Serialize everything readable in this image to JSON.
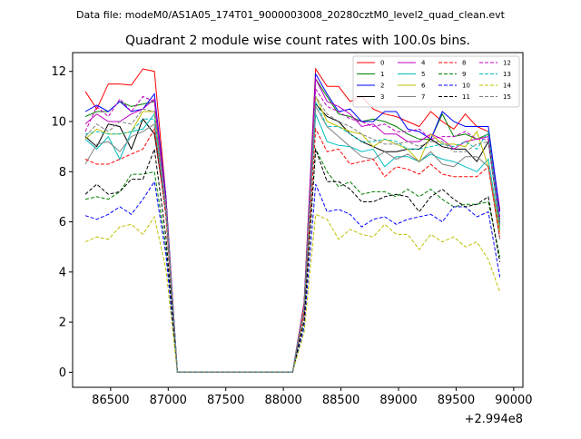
{
  "figure": {
    "suptitle": "Data file: modeM0/AS1A05_174T01_9000003008_20280cztM0_level2_quad_clean.evt"
  },
  "chart_data": {
    "type": "line",
    "title": "Quadrant 2 module wise count rates with 100.0s bins.",
    "xlabel": "",
    "ylabel": "",
    "offset_text": "+2.994e8",
    "x_offset": 299400000,
    "xlim": [
      86170,
      90080
    ],
    "ylim": [
      -0.6,
      12.75
    ],
    "xticks": [
      86500,
      87000,
      87500,
      88000,
      88500,
      89000,
      89500,
      90000
    ],
    "yticks": [
      0,
      2,
      4,
      6,
      8,
      10,
      12
    ],
    "grid": false,
    "legend": {
      "placement": "upper-right",
      "columns": 4
    },
    "x": [
      86280,
      86380,
      86480,
      86580,
      86680,
      86780,
      86880,
      86980,
      87080,
      87180,
      87280,
      87380,
      87480,
      87580,
      87680,
      87780,
      87880,
      87980,
      88080,
      88180,
      88280,
      88380,
      88480,
      88580,
      88680,
      88780,
      88880,
      88980,
      89080,
      89180,
      89280,
      89380,
      89480,
      89580,
      89680,
      89780,
      89880
    ],
    "series": [
      {
        "name": "0",
        "color": "#ff0000",
        "dash": "solid",
        "values": [
          11.2,
          10.5,
          11.5,
          11.5,
          11.45,
          12.1,
          12.0,
          7.0,
          0,
          0,
          0,
          0,
          0,
          0,
          0,
          0,
          0,
          0,
          0,
          2.8,
          12.1,
          11.4,
          11.4,
          10.8,
          11.0,
          10.5,
          10.3,
          10.2,
          10.0,
          9.8,
          10.4,
          10.0,
          9.7,
          10.3,
          9.8,
          9.6,
          6.5
        ]
      },
      {
        "name": "1",
        "color": "#008000",
        "dash": "solid",
        "values": [
          10.2,
          10.4,
          10.4,
          10.8,
          10.6,
          10.7,
          10.8,
          6.8,
          0,
          0,
          0,
          0,
          0,
          0,
          0,
          0,
          0,
          0,
          0,
          2.7,
          11.7,
          11.0,
          10.3,
          10.2,
          10.0,
          10.1,
          10.0,
          9.8,
          9.5,
          9.3,
          9.3,
          10.3,
          9.4,
          9.5,
          9.3,
          9.5,
          6.1
        ]
      },
      {
        "name": "2",
        "color": "#0000ff",
        "dash": "solid",
        "values": [
          10.4,
          10.65,
          10.4,
          10.8,
          10.4,
          10.5,
          11.1,
          7.0,
          0,
          0,
          0,
          0,
          0,
          0,
          0,
          0,
          0,
          0,
          0,
          2.7,
          11.9,
          11.1,
          10.4,
          10.5,
          10.0,
          10.0,
          10.4,
          10.4,
          9.7,
          9.6,
          9.3,
          10.4,
          10.0,
          9.8,
          9.8,
          9.8,
          6.4
        ]
      },
      {
        "name": "3",
        "color": "#000000",
        "dash": "solid",
        "values": [
          9.4,
          9.0,
          9.9,
          9.8,
          8.9,
          10.1,
          9.5,
          6.4,
          0,
          0,
          0,
          0,
          0,
          0,
          0,
          0,
          0,
          0,
          0,
          2.5,
          10.7,
          10.2,
          10.0,
          9.5,
          9.2,
          9.0,
          8.8,
          8.8,
          8.9,
          8.9,
          9.3,
          9.0,
          8.9,
          8.9,
          8.4,
          9.2,
          5.9
        ]
      },
      {
        "name": "4",
        "color": "#bf00bf",
        "dash": "solid",
        "values": [
          9.9,
          10.3,
          10.0,
          10.0,
          10.3,
          10.5,
          10.9,
          6.8,
          0,
          0,
          0,
          0,
          0,
          0,
          0,
          0,
          0,
          0,
          0,
          2.7,
          11.7,
          10.8,
          10.6,
          10.3,
          9.8,
          9.9,
          9.5,
          9.5,
          9.2,
          9.2,
          9.5,
          9.3,
          8.9,
          9.2,
          9.3,
          9.4,
          6.0
        ]
      },
      {
        "name": "5",
        "color": "#00bfbf",
        "dash": "solid",
        "values": [
          9.3,
          8.9,
          9.4,
          8.5,
          9.6,
          9.7,
          10.3,
          6.4,
          0,
          0,
          0,
          0,
          0,
          0,
          0,
          0,
          0,
          0,
          0,
          2.5,
          10.3,
          9.2,
          9.05,
          9.0,
          8.8,
          8.9,
          8.2,
          8.6,
          8.6,
          8.4,
          8.7,
          8.5,
          8.4,
          8.2,
          8.0,
          8.5,
          5.7
        ]
      },
      {
        "name": "6",
        "color": "#bfbf00",
        "dash": "solid",
        "values": [
          9.3,
          9.7,
          9.5,
          9.5,
          9.6,
          10.4,
          10.4,
          6.7,
          0,
          0,
          0,
          0,
          0,
          0,
          0,
          0,
          0,
          0,
          0,
          2.6,
          11.0,
          10.0,
          9.8,
          9.6,
          9.5,
          9.0,
          9.3,
          9.1,
          8.9,
          8.4,
          9.5,
          9.1,
          9.1,
          9.0,
          9.6,
          8.2,
          5.6
        ]
      },
      {
        "name": "7",
        "color": "#808080",
        "dash": "solid",
        "values": [
          8.3,
          9.1,
          9.2,
          8.8,
          9.4,
          9.6,
          9.9,
          6.3,
          0,
          0,
          0,
          0,
          0,
          0,
          0,
          0,
          0,
          0,
          0,
          2.4,
          10.6,
          9.8,
          9.4,
          9.0,
          8.6,
          8.5,
          8.8,
          8.5,
          8.7,
          8.4,
          8.8,
          8.3,
          8.2,
          8.6,
          8.6,
          8.2,
          5.3
        ]
      },
      {
        "name": "8",
        "color": "#ff0000",
        "dash": "dashed",
        "values": [
          8.5,
          8.3,
          8.3,
          8.5,
          8.7,
          8.9,
          9.7,
          6.2,
          0,
          0,
          0,
          0,
          0,
          0,
          0,
          0,
          0,
          0,
          0,
          2.4,
          9.7,
          8.8,
          8.9,
          8.3,
          8.4,
          8.5,
          7.8,
          8.2,
          8.1,
          7.9,
          8.3,
          7.9,
          7.8,
          7.8,
          7.8,
          8.2,
          5.4
        ]
      },
      {
        "name": "9",
        "color": "#008000",
        "dash": "dashed",
        "values": [
          6.9,
          7.0,
          6.9,
          7.2,
          7.9,
          7.9,
          8.0,
          5.0,
          0,
          0,
          0,
          0,
          0,
          0,
          0,
          0,
          0,
          0,
          0,
          2.0,
          8.9,
          8.0,
          7.4,
          7.6,
          7.1,
          7.2,
          7.2,
          7.0,
          7.3,
          7.0,
          7.3,
          6.9,
          6.6,
          6.7,
          6.7,
          6.8,
          4.6
        ]
      },
      {
        "name": "10",
        "color": "#0000ff",
        "dash": "dashed",
        "values": [
          6.25,
          6.1,
          6.3,
          6.6,
          6.3,
          6.9,
          7.6,
          4.7,
          0,
          0,
          0,
          0,
          0,
          0,
          0,
          0,
          0,
          0,
          0,
          1.8,
          7.5,
          6.4,
          6.5,
          6.3,
          5.8,
          6.1,
          6.2,
          5.9,
          6.1,
          6.2,
          6.3,
          6.0,
          6.6,
          6.6,
          6.2,
          6.4,
          3.8
        ]
      },
      {
        "name": "11",
        "color": "#000000",
        "dash": "dashed",
        "values": [
          7.1,
          7.5,
          7.1,
          7.2,
          7.7,
          7.7,
          8.9,
          5.4,
          0,
          0,
          0,
          0,
          0,
          0,
          0,
          0,
          0,
          0,
          0,
          2.1,
          8.9,
          7.6,
          7.6,
          7.3,
          6.8,
          6.8,
          7.0,
          7.1,
          7.0,
          6.4,
          7.0,
          7.3,
          6.9,
          6.6,
          6.7,
          7.0,
          4.4
        ]
      },
      {
        "name": "12",
        "color": "#bf00bf",
        "dash": "dashed",
        "values": [
          9.6,
          10.6,
          10.2,
          10.9,
          10.4,
          11.0,
          10.8,
          6.7,
          0,
          0,
          0,
          0,
          0,
          0,
          0,
          0,
          0,
          0,
          0,
          2.7,
          11.3,
          10.6,
          10.4,
          10.1,
          10.0,
          9.8,
          9.9,
          9.6,
          9.6,
          9.7,
          9.3,
          9.4,
          9.4,
          9.6,
          9.3,
          9.3,
          6.2
        ]
      },
      {
        "name": "13",
        "color": "#00bfbf",
        "dash": "dashed",
        "values": [
          9.5,
          9.6,
          9.5,
          9.5,
          9.6,
          10.1,
          10.1,
          6.5,
          0,
          0,
          0,
          0,
          0,
          0,
          0,
          0,
          0,
          0,
          0,
          2.6,
          10.8,
          9.8,
          9.8,
          9.5,
          9.2,
          9.2,
          9.3,
          9.2,
          8.9,
          8.9,
          9.0,
          9.1,
          9.0,
          9.2,
          8.9,
          9.6,
          5.9
        ]
      },
      {
        "name": "14",
        "color": "#bfbf00",
        "dash": "dashed",
        "values": [
          5.2,
          5.4,
          5.3,
          5.8,
          5.9,
          5.5,
          6.2,
          4.1,
          0,
          0,
          0,
          0,
          0,
          0,
          0,
          0,
          0,
          0,
          0,
          1.6,
          6.3,
          6.1,
          5.3,
          5.7,
          5.5,
          5.4,
          5.9,
          5.5,
          5.5,
          4.9,
          5.5,
          5.2,
          5.4,
          5.0,
          5.2,
          4.5,
          3.2
        ]
      },
      {
        "name": "15",
        "color": "#808080",
        "dash": "dashed",
        "values": [
          9.4,
          9.9,
          9.6,
          10.0,
          9.9,
          10.5,
          10.4,
          6.6,
          0,
          0,
          0,
          0,
          0,
          0,
          0,
          0,
          0,
          0,
          0,
          2.6,
          11.0,
          10.3,
          10.0,
          9.8,
          9.5,
          9.3,
          9.1,
          9.1,
          9.2,
          9.0,
          9.2,
          9.2,
          8.8,
          8.8,
          9.1,
          9.2,
          5.8
        ]
      }
    ]
  }
}
